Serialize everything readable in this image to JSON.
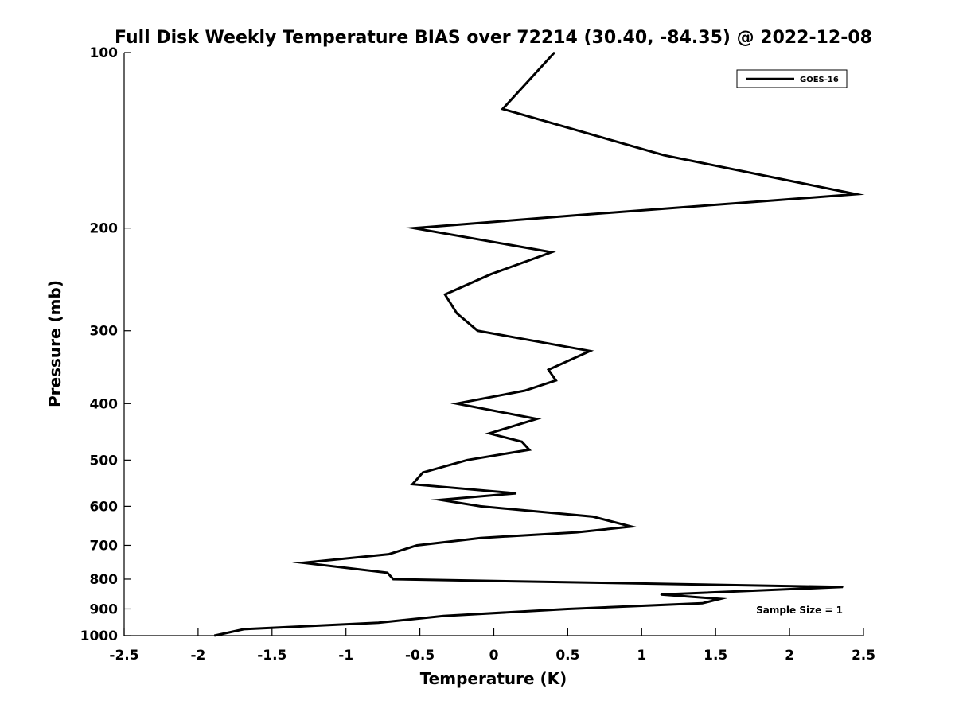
{
  "chart_data": {
    "type": "line",
    "title": "Full Disk Weekly Temperature BIAS over 72214 (30.40, -84.35) @ 2022-12-08",
    "xlabel": "Temperature (K)",
    "ylabel": "Pressure (mb)",
    "xlim": [
      -2.5,
      2.5
    ],
    "ylim": [
      100,
      1000
    ],
    "yscale": "log",
    "y_reversed": true,
    "grid": false,
    "legend_position": "top-right",
    "x_ticks": [
      -2.5,
      -2,
      -1.5,
      -1,
      -0.5,
      0,
      0.5,
      1,
      1.5,
      2,
      2.5
    ],
    "x_tick_labels": [
      "-2.5",
      "-2",
      "-1.5",
      "-1",
      "-0.5",
      "0",
      "0.5",
      "1",
      "1.5",
      "2",
      "2.5"
    ],
    "y_ticks": [
      100,
      200,
      300,
      400,
      500,
      600,
      700,
      800,
      900,
      1000
    ],
    "y_tick_labels": [
      "100",
      "200",
      "300",
      "400",
      "500",
      "600",
      "700",
      "800",
      "900",
      "1000"
    ],
    "series": [
      {
        "name": "GOES-16",
        "color": "#000000",
        "points": [
          {
            "x": 0.41,
            "y": 100
          },
          {
            "x": 0.06,
            "y": 125
          },
          {
            "x": 1.15,
            "y": 150
          },
          {
            "x": 2.45,
            "y": 175
          },
          {
            "x": 0.58,
            "y": 190
          },
          {
            "x": -0.54,
            "y": 200
          },
          {
            "x": 0.39,
            "y": 220
          },
          {
            "x": -0.02,
            "y": 240
          },
          {
            "x": -0.33,
            "y": 260
          },
          {
            "x": -0.25,
            "y": 280
          },
          {
            "x": -0.11,
            "y": 300
          },
          {
            "x": 0.65,
            "y": 325
          },
          {
            "x": 0.37,
            "y": 350
          },
          {
            "x": 0.42,
            "y": 365
          },
          {
            "x": 0.21,
            "y": 380
          },
          {
            "x": -0.25,
            "y": 400
          },
          {
            "x": 0.29,
            "y": 425
          },
          {
            "x": -0.03,
            "y": 450
          },
          {
            "x": 0.19,
            "y": 465
          },
          {
            "x": 0.24,
            "y": 480
          },
          {
            "x": -0.18,
            "y": 500
          },
          {
            "x": -0.48,
            "y": 525
          },
          {
            "x": -0.55,
            "y": 550
          },
          {
            "x": 0.15,
            "y": 570
          },
          {
            "x": -0.36,
            "y": 585
          },
          {
            "x": -0.09,
            "y": 600
          },
          {
            "x": 0.67,
            "y": 625
          },
          {
            "x": 0.93,
            "y": 650
          },
          {
            "x": 0.56,
            "y": 665
          },
          {
            "x": -0.09,
            "y": 680
          },
          {
            "x": -0.52,
            "y": 700
          },
          {
            "x": -0.71,
            "y": 725
          },
          {
            "x": -1.29,
            "y": 750
          },
          {
            "x": -0.72,
            "y": 780
          },
          {
            "x": -0.68,
            "y": 800
          },
          {
            "x": 2.36,
            "y": 825
          },
          {
            "x": 1.13,
            "y": 850
          },
          {
            "x": 1.53,
            "y": 865
          },
          {
            "x": 1.41,
            "y": 880
          },
          {
            "x": 0.5,
            "y": 900
          },
          {
            "x": -0.34,
            "y": 925
          },
          {
            "x": -0.78,
            "y": 950
          },
          {
            "x": -1.69,
            "y": 975
          },
          {
            "x": -1.89,
            "y": 1000
          }
        ]
      }
    ],
    "annotation": "Sample Size = 1"
  }
}
